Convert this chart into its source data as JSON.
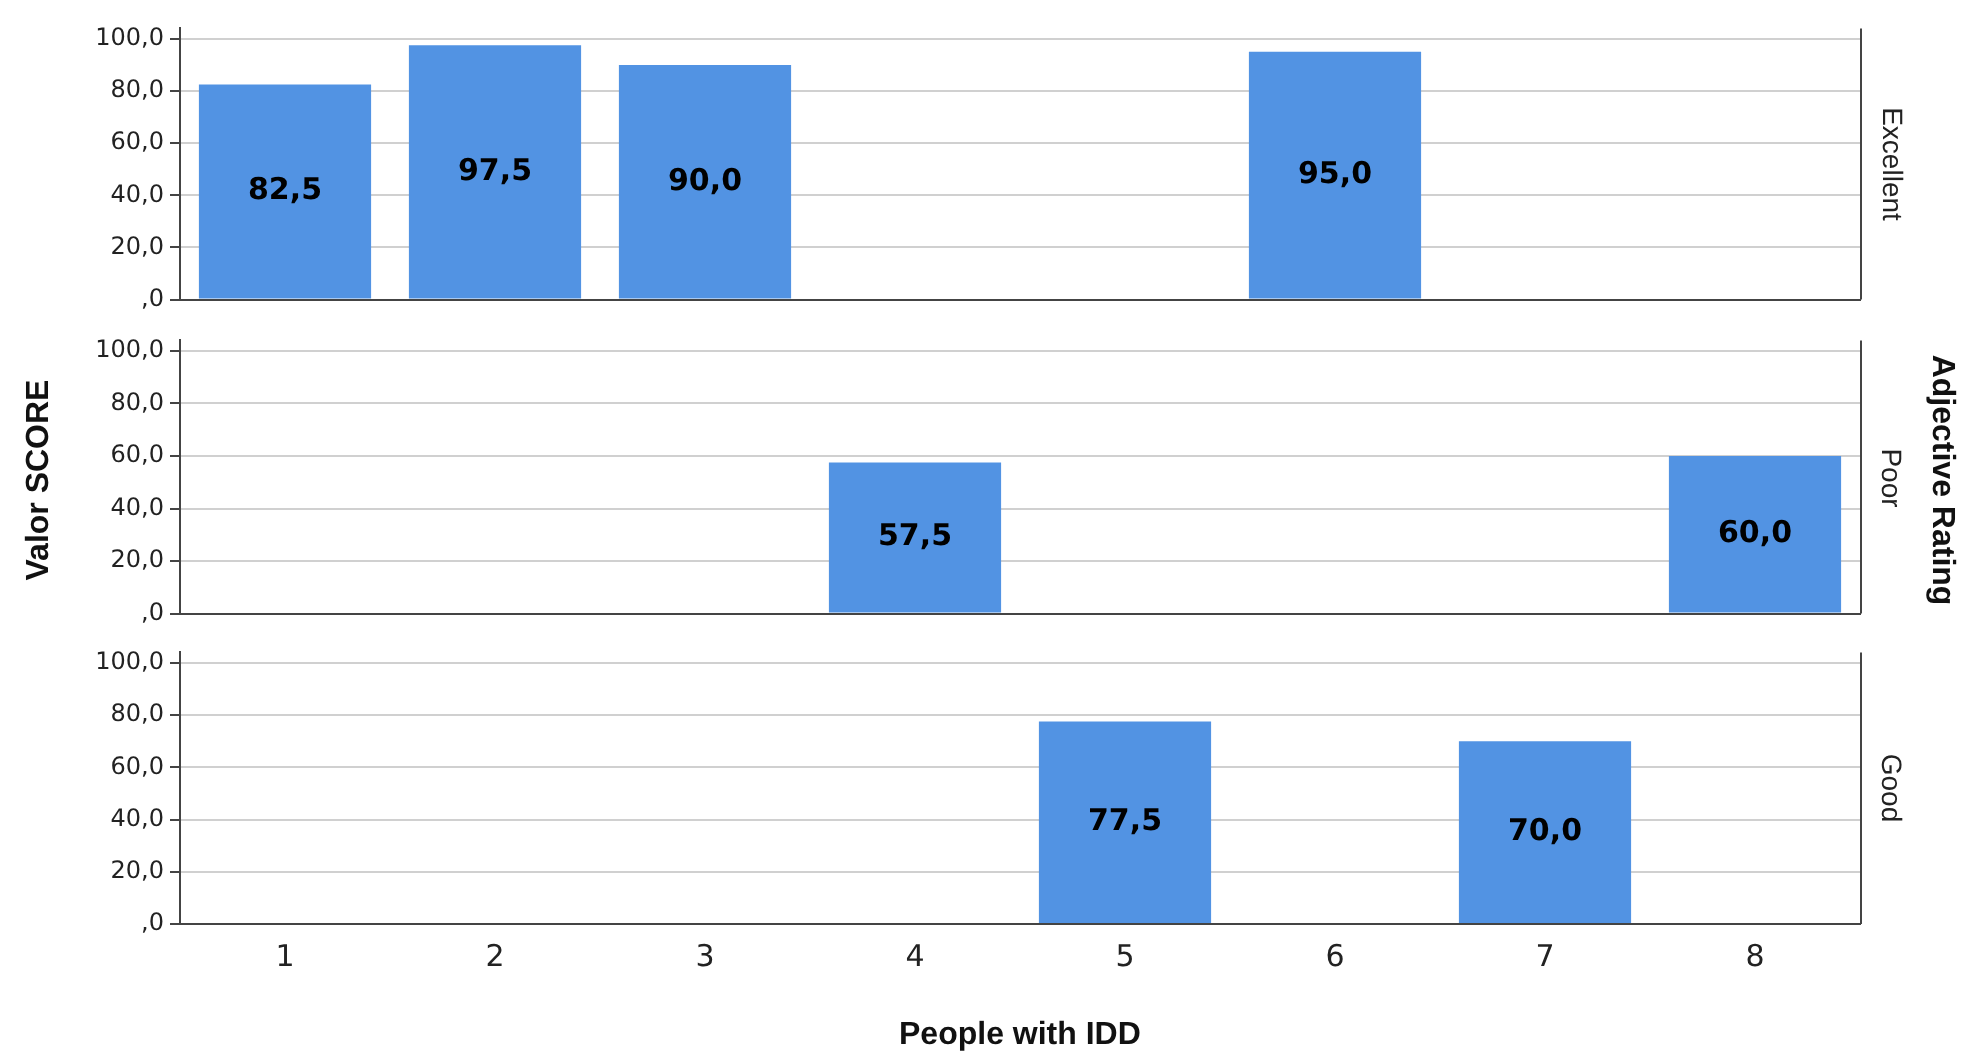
{
  "chart_data": [
    {
      "type": "bar",
      "ylabel": "Valor SCORE",
      "y2label": "Excellent",
      "annotations": [
        "Adjective Rating"
      ],
      "categories": [
        "1",
        "2",
        "3",
        "4",
        "5",
        "6",
        "7",
        "8"
      ],
      "values": [
        82.5,
        97.5,
        90.0,
        null,
        null,
        95.0,
        null,
        null
      ],
      "value_labels": [
        "82,5",
        "97,5",
        "90,0",
        null,
        null,
        "95,0",
        null,
        null
      ],
      "color": "#5293e3",
      "ylim": [
        0,
        104
      ],
      "yticks": [
        {
          "value": 0,
          "label": ",0"
        },
        {
          "value": 20,
          "label": "20,0"
        },
        {
          "value": 40,
          "label": "40,0"
        },
        {
          "value": 60,
          "label": "60,0"
        },
        {
          "value": 80,
          "label": "80,0"
        },
        {
          "value": 100,
          "label": "100,0"
        }
      ],
      "grid": "y",
      "tick_labels": "y"
    },
    {
      "type": "bar",
      "y2label": "Poor",
      "categories": [
        "1",
        "2",
        "3",
        "4",
        "5",
        "6",
        "7",
        "8"
      ],
      "values": [
        null,
        null,
        null,
        57.5,
        null,
        null,
        null,
        60.0
      ],
      "value_labels": [
        null,
        null,
        null,
        "57,5",
        null,
        null,
        null,
        "60,0"
      ],
      "color": "#5293e3",
      "ylim": [
        0,
        104
      ],
      "yticks": [
        {
          "value": 0,
          "label": ",0"
        },
        {
          "value": 20,
          "label": "20,0"
        },
        {
          "value": 40,
          "label": "40,0"
        },
        {
          "value": 60,
          "label": "60,0"
        },
        {
          "value": 80,
          "label": "80,0"
        },
        {
          "value": 100,
          "label": "100,0"
        }
      ],
      "grid": "y",
      "tick_labels": "y"
    },
    {
      "type": "bar",
      "xlabel": "People with IDD",
      "y2label": "Good",
      "categories": [
        "1",
        "2",
        "3",
        "4",
        "5",
        "6",
        "7",
        "8"
      ],
      "values": [
        null,
        null,
        null,
        null,
        77.5,
        null,
        70.0,
        null
      ],
      "value_labels": [
        null,
        null,
        null,
        null,
        "77,5",
        null,
        "70,0",
        null
      ],
      "color": "#5293e3",
      "ylim": [
        0,
        104
      ],
      "yticks": [
        {
          "value": 0,
          "label": ",0"
        },
        {
          "value": 20,
          "label": "20,0"
        },
        {
          "value": 40,
          "label": "40,0"
        },
        {
          "value": 60,
          "label": "60,0"
        },
        {
          "value": 80,
          "label": "80,0"
        },
        {
          "value": 100,
          "label": "100,0"
        }
      ],
      "grid": "y"
    }
  ]
}
